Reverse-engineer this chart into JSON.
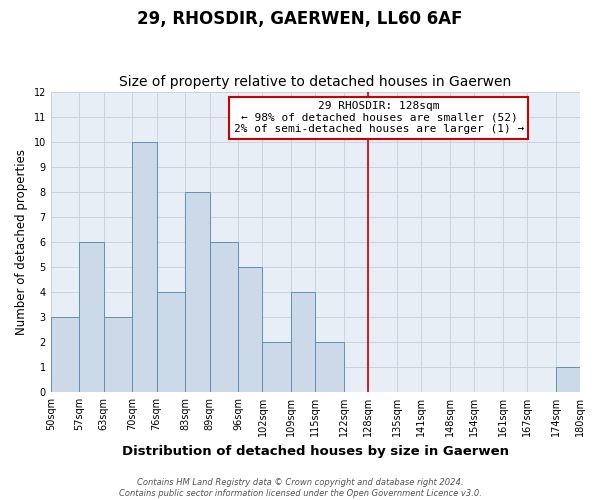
{
  "title": "29, RHOSDIR, GAERWEN, LL60 6AF",
  "subtitle": "Size of property relative to detached houses in Gaerwen",
  "xlabel": "Distribution of detached houses by size in Gaerwen",
  "ylabel": "Number of detached properties",
  "bin_edges": [
    50,
    57,
    63,
    70,
    76,
    83,
    89,
    96,
    102,
    109,
    115,
    122,
    128,
    135,
    141,
    148,
    154,
    161,
    167,
    174,
    180
  ],
  "counts": [
    3,
    6,
    3,
    10,
    4,
    8,
    6,
    5,
    2,
    4,
    2,
    0,
    0,
    0,
    0,
    0,
    0,
    0,
    0,
    1
  ],
  "bar_facecolor": "#ccd9e8",
  "bar_edgecolor": "#6090b8",
  "bar_linewidth": 0.7,
  "grid_color": "#c8d4e0",
  "background_color": "#e8eef5",
  "fig_background": "#ffffff",
  "vline_x": 128,
  "vline_color": "#cc0000",
  "vline_linewidth": 1.2,
  "annotation_title": "29 RHOSDIR: 128sqm",
  "annotation_line1": "← 98% of detached houses are smaller (52)",
  "annotation_line2": "2% of semi-detached houses are larger (1) →",
  "annotation_box_edgecolor": "#cc0000",
  "annotation_box_facecolor": "#ffffff",
  "ylim": [
    0,
    12
  ],
  "yticks": [
    0,
    1,
    2,
    3,
    4,
    5,
    6,
    7,
    8,
    9,
    10,
    11,
    12
  ],
  "tick_labels": [
    "50sqm",
    "57sqm",
    "63sqm",
    "70sqm",
    "76sqm",
    "83sqm",
    "89sqm",
    "96sqm",
    "102sqm",
    "109sqm",
    "115sqm",
    "122sqm",
    "128sqm",
    "135sqm",
    "141sqm",
    "148sqm",
    "154sqm",
    "161sqm",
    "167sqm",
    "174sqm",
    "180sqm"
  ],
  "footer_line1": "Contains HM Land Registry data © Crown copyright and database right 2024.",
  "footer_line2": "Contains public sector information licensed under the Open Government Licence v3.0.",
  "title_fontsize": 12,
  "subtitle_fontsize": 10,
  "xlabel_fontsize": 9.5,
  "ylabel_fontsize": 8.5,
  "tick_fontsize": 7,
  "footer_fontsize": 6,
  "annotation_fontsize": 8
}
